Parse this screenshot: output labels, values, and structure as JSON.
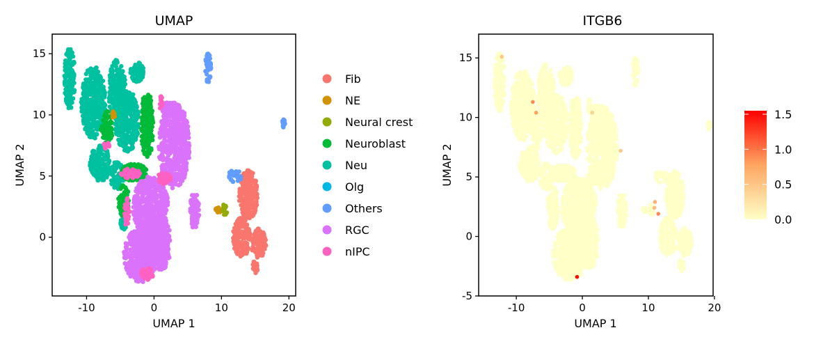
{
  "chart_data": [
    {
      "type": "scatter",
      "title": "UMAP",
      "xlabel": "UMAP 1",
      "ylabel": "UMAP 2",
      "xlim": [
        -15.1,
        21.0
      ],
      "ylim": [
        -4.8,
        16.6
      ],
      "xticks": [
        -10,
        0,
        10,
        20
      ],
      "yticks": [
        0,
        5,
        10,
        15
      ],
      "grid": false,
      "legend_position": "right",
      "legend": [
        {
          "label": "Fib",
          "color": "#F8766D"
        },
        {
          "label": "NE",
          "color": "#D39200"
        },
        {
          "label": "Neural crest",
          "color": "#93AA00"
        },
        {
          "label": "Neuroblast",
          "color": "#00BA38"
        },
        {
          "label": "Neu",
          "color": "#00C19F"
        },
        {
          "label": "Olg",
          "color": "#00B9E3"
        },
        {
          "label": "Others",
          "color": "#619CFF"
        },
        {
          "label": "RGC",
          "color": "#DB72FB"
        },
        {
          "label": "nIPC",
          "color": "#FF61C3"
        }
      ],
      "clusters": [
        {
          "label": "Neu",
          "regions": [
            [
              -12.5,
              13,
              0.8,
              2.5
            ],
            [
              -9,
              11,
              1.8,
              3
            ],
            [
              -5.5,
              12,
              1.3,
              2.5
            ],
            [
              -4,
              9.5,
              1.8,
              2.5
            ],
            [
              -2.5,
              13.5,
              1,
              0.8
            ],
            [
              -8,
              6,
              1.5,
              1.5
            ],
            [
              -5.5,
              5,
              1,
              1.2
            ],
            [
              -4.5,
              1.5,
              0.5,
              1
            ]
          ]
        },
        {
          "label": "Neuroblast",
          "regions": [
            [
              -1,
              9,
              0.9,
              2.5
            ],
            [
              -3,
              5.3,
              2,
              0.7
            ],
            [
              -4.5,
              3,
              0.8,
              1.3
            ],
            [
              -7,
              9,
              0.9,
              1.3
            ],
            [
              -1,
              11,
              0.7,
              0.7
            ]
          ]
        },
        {
          "label": "RGC",
          "regions": [
            [
              3,
              7.5,
              2.3,
              3.5
            ],
            [
              2.5,
              10.5,
              1.3,
              0.6
            ],
            [
              -0.5,
              2.5,
              2.6,
              2.5
            ],
            [
              -2,
              -1.5,
              2.5,
              2.2
            ],
            [
              6,
              2.2,
              0.7,
              1.5
            ],
            [
              1,
              -0.5,
              1.5,
              2.2
            ]
          ]
        },
        {
          "label": "nIPC",
          "regions": [
            [
              -3.5,
              5.2,
              1.5,
              0.4
            ],
            [
              -1,
              -3,
              1,
              0.5
            ],
            [
              -4,
              2,
              0.4,
              1.2
            ],
            [
              1.5,
              4.8,
              1,
              0.5
            ],
            [
              -7,
              7.5,
              0.5,
              0.3
            ],
            [
              1,
              11,
              0.3,
              0.6
            ]
          ]
        },
        {
          "label": "Fib",
          "regions": [
            [
              14,
              3.5,
              1.4,
              2
            ],
            [
              13,
              0,
              1.3,
              1.6
            ],
            [
              15.5,
              -0.5,
              1.1,
              1.2
            ],
            [
              15,
              -2.5,
              0.4,
              0.6
            ]
          ]
        },
        {
          "label": "Others",
          "regions": [
            [
              8,
              13.8,
              0.45,
              1.3
            ],
            [
              19.2,
              9.2,
              0.25,
              0.6
            ],
            [
              12,
              5,
              1,
              0.5
            ]
          ]
        },
        {
          "label": "NE",
          "regions": [
            [
              9.5,
              2.2,
              0.4,
              0.25
            ],
            [
              -6,
              10,
              0.2,
              0.3
            ]
          ]
        },
        {
          "label": "Neural crest",
          "regions": [
            [
              10.5,
              2.3,
              0.4,
              0.5
            ]
          ]
        }
      ]
    },
    {
      "type": "scatter",
      "title": "ITGB6",
      "xlabel": "UMAP 1",
      "ylabel": "UMAP 2",
      "xlim": [
        -15.7,
        19.8
      ],
      "ylim": [
        -5,
        17
      ],
      "xticks": [
        -10,
        0,
        10,
        20
      ],
      "yticks": [
        -5,
        0,
        5,
        10,
        15
      ],
      "grid": false,
      "colorbar": {
        "ticks": [
          "0.0",
          "0.5",
          "1.0",
          "1.5"
        ],
        "min": 0,
        "max": 1.55,
        "low_color": "#FFFFC8",
        "high_color": "#FF0000"
      },
      "expressing_cells": [
        {
          "x": -12.2,
          "y": 15.1,
          "value": 0.5
        },
        {
          "x": -7.5,
          "y": 11.3,
          "value": 0.9
        },
        {
          "x": -7.0,
          "y": 10.4,
          "value": 0.8
        },
        {
          "x": 1.5,
          "y": 10.4,
          "value": 0.4
        },
        {
          "x": 5.8,
          "y": 7.2,
          "value": 0.5
        },
        {
          "x": 11.0,
          "y": 2.9,
          "value": 0.7
        },
        {
          "x": 10.9,
          "y": 2.4,
          "value": 0.6
        },
        {
          "x": 11.5,
          "y": 1.9,
          "value": 0.9
        },
        {
          "x": -0.8,
          "y": -3.4,
          "value": 1.5
        }
      ]
    }
  ]
}
